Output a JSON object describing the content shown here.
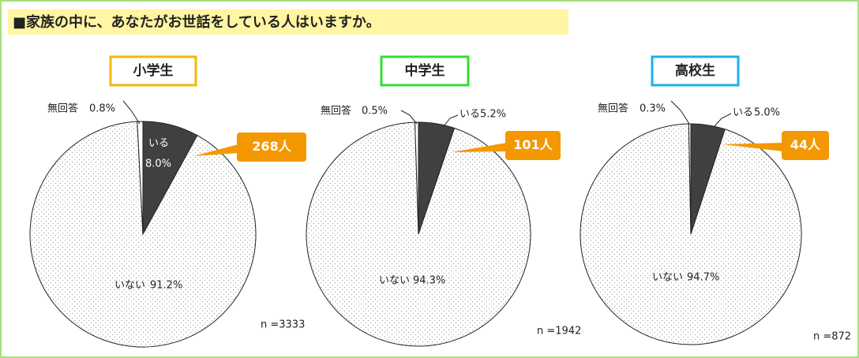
{
  "header": {
    "title": "■家族の中に、あなたがお世話をしている人はいますか。"
  },
  "chart_data": [
    {
      "type": "pie",
      "title": "小学生",
      "categories": [
        "いる",
        "いない",
        "無回答"
      ],
      "values": [
        8.0,
        91.2,
        0.8
      ],
      "value_labels": [
        "8.0%",
        "91.2%",
        "0.8%"
      ],
      "colors": [
        "#404040",
        "#ffffff",
        "#ffffff"
      ],
      "callout": "268人",
      "note": "n =3333"
    },
    {
      "type": "pie",
      "title": "中学生",
      "categories": [
        "いる",
        "いない",
        "無回答"
      ],
      "values": [
        5.2,
        94.3,
        0.5
      ],
      "value_labels": [
        "5.2%",
        "94.3%",
        "0.5%"
      ],
      "colors": [
        "#404040",
        "#ffffff",
        "#ffffff"
      ],
      "callout": "101人",
      "note": "n =1942"
    },
    {
      "type": "pie",
      "title": "高校生",
      "categories": [
        "いる",
        "いない",
        "無回答"
      ],
      "values": [
        5.0,
        94.7,
        0.3
      ],
      "value_labels": [
        "5.0%",
        "94.7%",
        "0.3%"
      ],
      "colors": [
        "#404040",
        "#ffffff",
        "#ffffff"
      ],
      "callout": "44人",
      "note": "n =872"
    }
  ]
}
